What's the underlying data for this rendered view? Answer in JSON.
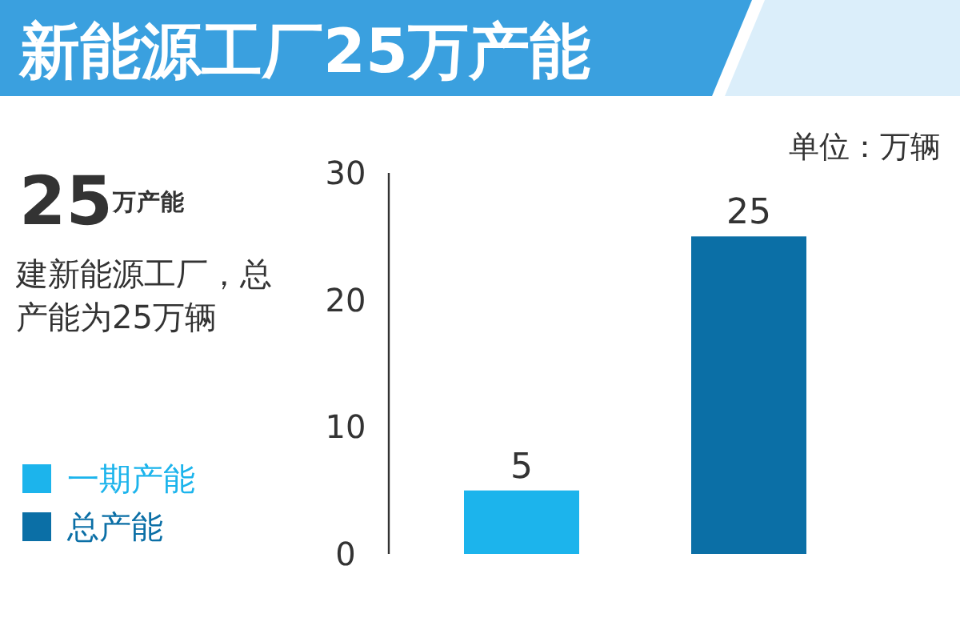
{
  "chart_data": {
    "type": "bar",
    "title": "新能源工厂25万产能",
    "ylabel": "单位：万辆",
    "annotations": [
      "25$^{万产能}$",
      "建新能源工厂，总产能为25万辆",
      "一期产能",
      "总产能"
    ],
    "categories": [
      null,
      null
    ],
    "values": [
      5,
      25
    ],
    "colors": [
      "#1cb4ec",
      "#0b6fa6"
    ],
    "ylim": [
      0,
      30
    ],
    "yticks": [
      0,
      10,
      20,
      30
    ],
    "data_labels": true,
    "tick_labels": "y"
  }
}
